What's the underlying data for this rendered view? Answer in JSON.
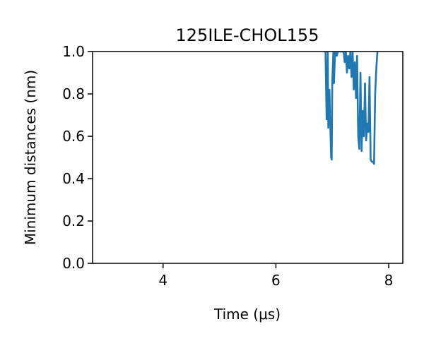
{
  "chart_data": {
    "type": "line",
    "title": "125ILE-CHOL155",
    "xlabel": "Time (μs)",
    "ylabel": "Minimum distances (nm)",
    "xlim": [
      2.75,
      8.25
    ],
    "ylim": [
      0,
      1.0
    ],
    "x_ticks": [
      4,
      6,
      8
    ],
    "x_tick_labels": [
      "4",
      "6",
      "8"
    ],
    "y_ticks": [
      0.0,
      0.2,
      0.4,
      0.6,
      0.8,
      1.0
    ],
    "y_tick_labels": [
      "0.0",
      "0.2",
      "0.4",
      "0.6",
      "0.8",
      "1.0"
    ],
    "grid": false,
    "series": [
      {
        "color": "#1f77b4",
        "x": [
          6.88,
          6.9,
          6.92,
          6.93,
          6.95,
          6.96,
          6.98,
          6.99,
          7.0,
          7.02,
          7.03,
          7.05,
          7.07,
          7.08,
          7.1,
          7.12,
          7.14,
          7.16,
          7.18,
          7.2,
          7.22,
          7.24,
          7.26,
          7.28,
          7.3,
          7.32,
          7.34,
          7.36,
          7.38,
          7.4,
          7.42,
          7.44,
          7.46,
          7.48,
          7.5,
          7.52,
          7.54,
          7.56,
          7.58,
          7.6,
          7.62,
          7.64,
          7.66,
          7.68,
          7.7,
          7.72,
          7.74,
          7.76,
          7.78,
          7.8
        ],
        "y": [
          1.0,
          0.68,
          1.0,
          0.64,
          0.82,
          0.7,
          0.5,
          0.49,
          0.86,
          1.0,
          0.85,
          1.0,
          0.99,
          0.98,
          1.0,
          1.0,
          1.0,
          1.0,
          1.0,
          1.0,
          0.95,
          1.0,
          0.9,
          0.98,
          0.92,
          1.0,
          0.88,
          1.0,
          0.82,
          0.95,
          0.78,
          0.98,
          0.6,
          0.54,
          0.9,
          0.53,
          0.72,
          0.6,
          0.85,
          0.58,
          0.66,
          0.62,
          0.88,
          0.49,
          0.48,
          0.48,
          0.47,
          0.8,
          0.92,
          1.0
        ]
      }
    ]
  }
}
